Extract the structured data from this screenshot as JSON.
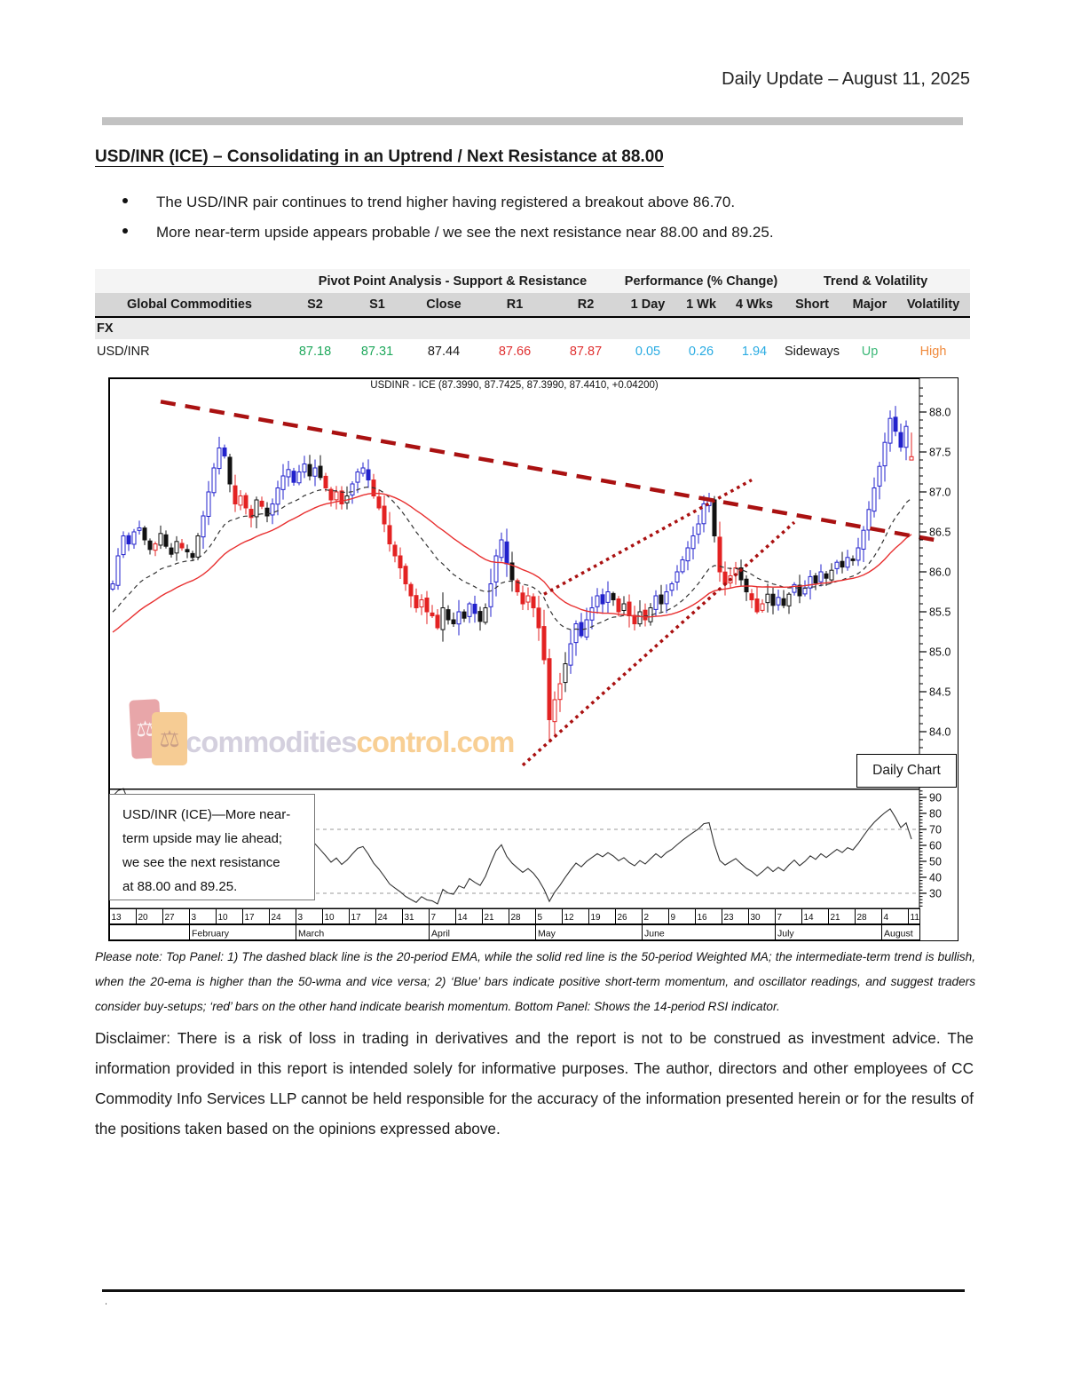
{
  "page": {
    "header_title": "Daily Update – August 11, 2025",
    "footer_mark": "."
  },
  "article": {
    "title": "USD/INR (ICE) – Consolidating in an Uptrend / Next Resistance at 88.00",
    "bullets": [
      "The USD/INR pair continues to trend higher having registered a breakout above 86.70.",
      "More near-term upside appears probable / we see the next resistance near 88.00 and 89.25."
    ]
  },
  "table": {
    "group_headers": [
      "Pivot Point Analysis - Support & Resistance",
      "Performance (% Change)",
      "Trend & Volatility"
    ],
    "columns": [
      "Global Commodities",
      "S2",
      "S1",
      "Close",
      "R1",
      "R2",
      "1 Day",
      "1 Wk",
      "4 Wks",
      "Short",
      "Major",
      "Volatility"
    ],
    "section_row": "FX",
    "rows": [
      {
        "name": "USD/INR",
        "s2": "87.18",
        "s1": "87.31",
        "close": "87.44",
        "r1": "87.66",
        "r2": "87.87",
        "d1": "0.05",
        "w1": "0.26",
        "w4": "1.94",
        "short": "Sideways",
        "major": "Up",
        "volatility": "High"
      }
    ],
    "colors": {
      "support": "#1fa85c",
      "resistance": "#e03131",
      "performance": "#29abe2",
      "up": "#3cb878",
      "high": "#f08a3c",
      "neutral": "#1a1a1a"
    }
  },
  "chart_data": {
    "type": "candlestick+rsi",
    "title": "USDINR - ICE (87.3990, 87.7425, 87.3990, 87.4410, +0.04200)",
    "panel_label": "Daily Chart",
    "watermark": {
      "word1": "commodities",
      "word2": "control.com",
      "logo_glyph": "⚖"
    },
    "annotation_lines": [
      "USD/INR (ICE)—More near-",
      "term upside may lie ahead;",
      "we see the next resistance",
      "at 88.00 and 89.25."
    ],
    "y_axis": {
      "labels": [
        "88.0",
        "87.5",
        "87.0",
        "86.5",
        "86.0",
        "85.5",
        "85.0",
        "84.5",
        "84.0"
      ],
      "minor_step": 0.1,
      "min": 83.4,
      "max": 88.3
    },
    "rsi_axis": {
      "labels": [
        "90",
        "80",
        "70",
        "60",
        "50",
        "40",
        "30"
      ],
      "guides": [
        70,
        30
      ],
      "minor_step": 2,
      "min": 22,
      "max": 94
    },
    "x_axis": {
      "week_labels": [
        "13",
        "20",
        "27",
        "3",
        "10",
        "17",
        "24",
        "3",
        "10",
        "17",
        "24",
        "31",
        "7",
        "14",
        "21",
        "28",
        "5",
        "12",
        "19",
        "26",
        "2",
        "9",
        "16",
        "23",
        "30",
        "7",
        "14",
        "21",
        "28",
        "4",
        "11"
      ],
      "month_spans": [
        {
          "label": "",
          "weeks": 3
        },
        {
          "label": "February",
          "weeks": 4
        },
        {
          "label": "March",
          "weeks": 5
        },
        {
          "label": "April",
          "weeks": 4
        },
        {
          "label": "May",
          "weeks": 4
        },
        {
          "label": "June",
          "weeks": 5
        },
        {
          "label": "July",
          "weeks": 4
        },
        {
          "label": "August",
          "weeks": 2
        }
      ]
    },
    "series": {
      "closes": [
        85.85,
        86.2,
        86.45,
        86.35,
        86.5,
        86.55,
        86.4,
        86.28,
        86.35,
        86.48,
        86.32,
        86.22,
        86.38,
        86.3,
        86.25,
        86.18,
        86.45,
        86.7,
        87.0,
        87.3,
        87.55,
        87.45,
        87.1,
        86.85,
        86.95,
        86.8,
        86.68,
        86.9,
        86.82,
        86.7,
        86.85,
        87.05,
        87.2,
        87.28,
        87.12,
        87.25,
        87.35,
        87.2,
        87.3,
        87.18,
        87.05,
        86.9,
        87.0,
        86.85,
        86.95,
        87.1,
        87.25,
        87.3,
        87.15,
        86.95,
        86.8,
        86.6,
        86.35,
        86.2,
        86.05,
        85.85,
        85.7,
        85.55,
        85.65,
        85.5,
        85.45,
        85.3,
        85.55,
        85.4,
        85.35,
        85.5,
        85.42,
        85.6,
        85.48,
        85.38,
        85.55,
        85.85,
        86.2,
        86.4,
        86.1,
        85.9,
        85.75,
        85.6,
        85.7,
        85.55,
        85.3,
        84.9,
        84.15,
        84.4,
        84.6,
        84.85,
        85.1,
        85.35,
        85.2,
        85.4,
        85.55,
        85.7,
        85.6,
        85.75,
        85.65,
        85.5,
        85.6,
        85.45,
        85.35,
        85.5,
        85.4,
        85.55,
        85.7,
        85.6,
        85.75,
        85.85,
        86.0,
        86.15,
        86.3,
        86.45,
        86.6,
        86.85,
        86.9,
        86.45,
        86.0,
        85.85,
        85.95,
        86.05,
        85.9,
        85.75,
        85.65,
        85.5,
        85.6,
        85.72,
        85.58,
        85.68,
        85.58,
        85.72,
        85.84,
        85.7,
        85.8,
        85.94,
        85.86,
        86.0,
        85.92,
        86.02,
        86.12,
        86.06,
        86.18,
        86.14,
        86.3,
        86.52,
        86.78,
        87.05,
        87.32,
        87.62,
        87.92,
        87.76,
        87.56,
        87.82,
        87.44
      ]
    },
    "last_candle": {
      "open": 87.399,
      "high": 87.7425,
      "low": 87.399,
      "close": 87.441
    },
    "ma_seed": {
      "start": 84.0,
      "end": 85.8,
      "count": 50
    },
    "indicators": {
      "ema_period": 20,
      "wma_period": 50,
      "rsi_period": 14
    },
    "overlays": {
      "downtrend_dashed": [
        [
          9,
          88.13
        ],
        [
          156,
          86.38
        ]
      ],
      "wedge_upper_dotted": [
        [
          81,
          85.72
        ],
        [
          120,
          87.15
        ]
      ],
      "wedge_lower_dotted": [
        [
          77,
          83.58
        ],
        [
          128,
          86.62
        ]
      ]
    },
    "colors": {
      "up_momentum": "#2222cc",
      "down_momentum": "#e32222",
      "neutral": "#111111",
      "ema": "#333333",
      "wma": "#e83030",
      "trendline": "#aa1111",
      "rsi": "#333333",
      "guide": "#999999"
    }
  },
  "note": "Please note: Top Panel: 1) The dashed black line is the 20-period EMA, while the solid red line is the 50-period Weighted MA; the intermediate-term trend is bullish, when the 20-ema is higher than the 50-wma and vice versa; 2) ‘Blue’ bars indicate positive short-term momentum, and oscillator readings, and suggest traders consider buy-setups; ‘red’ bars on the other hand indicate bearish momentum. Bottom Panel: Shows the 14-period RSI indicator.",
  "disclaimer": "Disclaimer: There is a risk of loss in trading in derivatives and the report is not to be construed as investment advice. The information provided in this report is intended solely for informative purposes. The author, directors and other employees of CC Commodity Info Services LLP cannot be held responsible for the accuracy of the information presented herein or for the results of the positions taken based on the opinions expressed above."
}
